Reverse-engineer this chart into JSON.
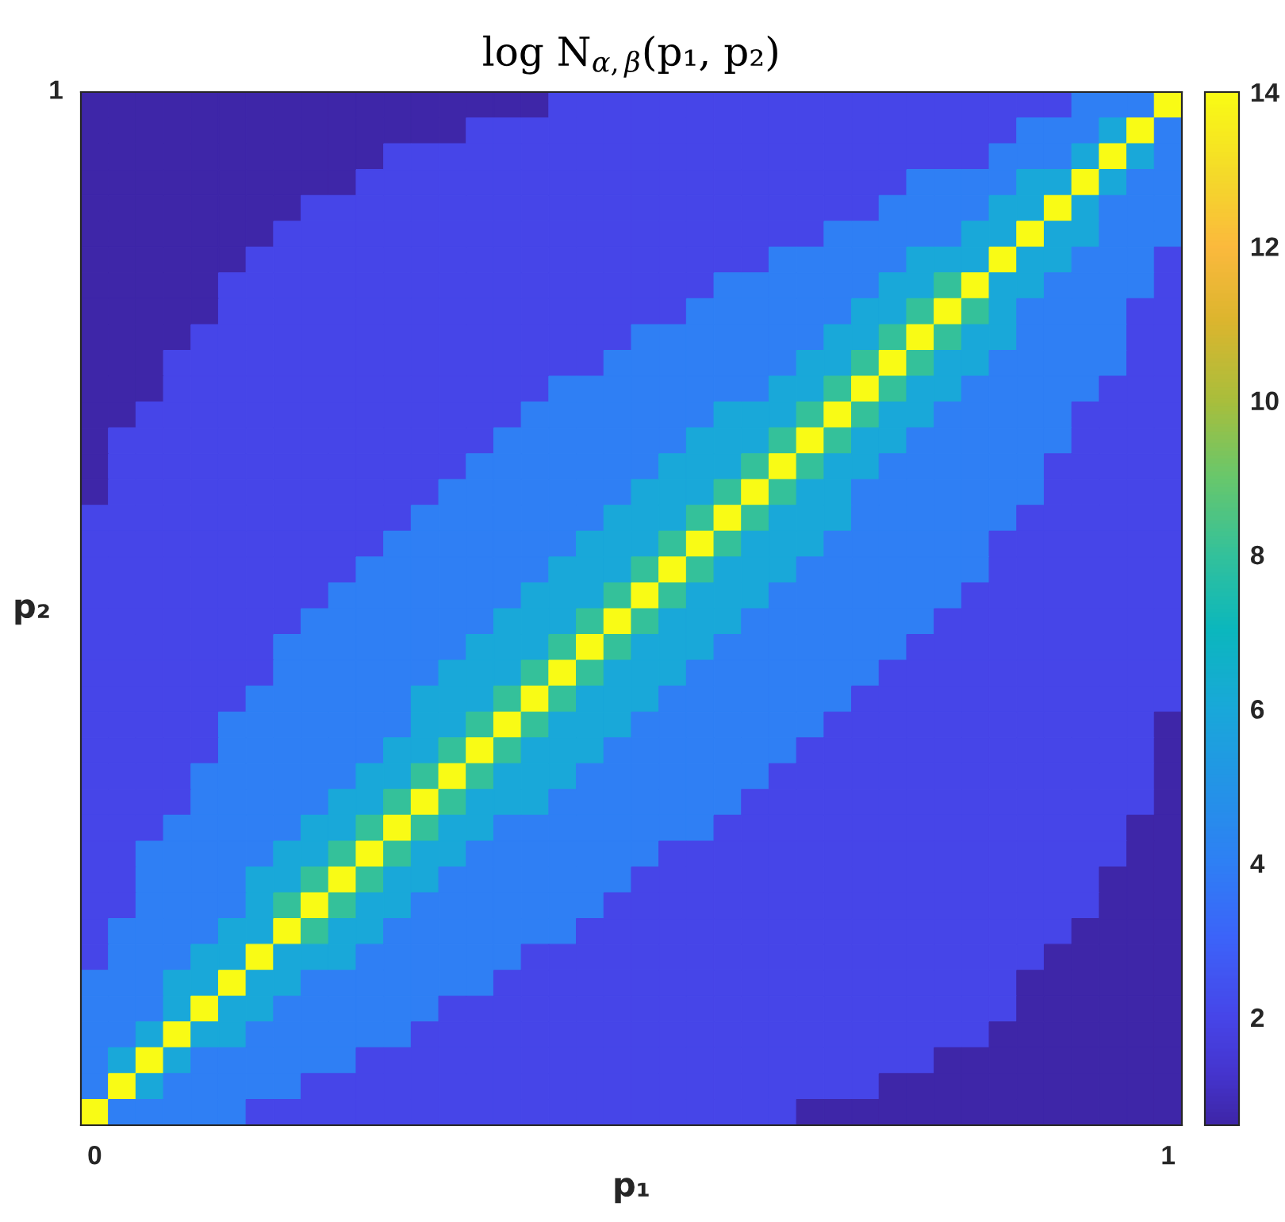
{
  "chart_data": {
    "type": "heatmap",
    "title": "log N$_{α,β}$(p₁, p₂)",
    "xlabel": "p₁",
    "ylabel": "p₂",
    "categories": [
      "0",
      null,
      null,
      null,
      null,
      null,
      null,
      null,
      null,
      null,
      null,
      null,
      null,
      null,
      null,
      null,
      null,
      null,
      null,
      null,
      null,
      null,
      null,
      null,
      null,
      null,
      null,
      null,
      null,
      null,
      null,
      null,
      null,
      null,
      null,
      null,
      null,
      null,
      null,
      "1"
    ],
    "y_categories": [
      null,
      null,
      null,
      null,
      null,
      null,
      null,
      null,
      null,
      null,
      null,
      null,
      null,
      null,
      null,
      null,
      null,
      null,
      null,
      null,
      null,
      null,
      null,
      null,
      null,
      null,
      null,
      null,
      null,
      null,
      null,
      null,
      null,
      null,
      null,
      null,
      null,
      null,
      null,
      null
    ],
    "annotations": [
      "1"
    ],
    "clim": [
      0.6,
      14
    ],
    "cticks": [
      2,
      4,
      6,
      8,
      10,
      12,
      14
    ],
    "cells": [
      [
        0.6,
        0.6,
        0.6,
        0.6,
        0.6,
        0.6,
        0.6,
        0.6,
        0.6,
        0.6,
        0.6,
        0.6,
        0.6,
        0.6,
        0.6,
        0.6,
        0.6,
        2,
        2,
        2,
        2,
        2,
        2,
        2,
        2,
        2,
        2,
        2,
        2,
        2,
        2,
        2,
        2,
        2,
        2,
        2,
        4,
        4,
        4,
        14
      ],
      [
        0.6,
        0.6,
        0.6,
        0.6,
        0.6,
        0.6,
        0.6,
        0.6,
        0.6,
        0.6,
        0.6,
        0.6,
        0.6,
        0.6,
        2,
        2,
        2,
        2,
        2,
        2,
        2,
        2,
        2,
        2,
        2,
        2,
        2,
        2,
        2,
        2,
        2,
        2,
        2,
        2,
        4,
        4,
        4,
        6,
        14,
        4
      ],
      [
        0.6,
        0.6,
        0.6,
        0.6,
        0.6,
        0.6,
        0.6,
        0.6,
        0.6,
        0.6,
        0.6,
        2,
        2,
        2,
        2,
        2,
        2,
        2,
        2,
        2,
        2,
        2,
        2,
        2,
        2,
        2,
        2,
        2,
        2,
        2,
        2,
        2,
        2,
        4,
        4,
        4,
        6,
        14,
        6,
        4
      ],
      [
        0.6,
        0.6,
        0.6,
        0.6,
        0.6,
        0.6,
        0.6,
        0.6,
        0.6,
        0.6,
        2,
        2,
        2,
        2,
        2,
        2,
        2,
        2,
        2,
        2,
        2,
        2,
        2,
        2,
        2,
        2,
        2,
        2,
        2,
        2,
        4,
        4,
        4,
        4,
        6,
        6,
        14,
        6,
        4,
        4
      ],
      [
        0.6,
        0.6,
        0.6,
        0.6,
        0.6,
        0.6,
        0.6,
        0.6,
        2,
        2,
        2,
        2,
        2,
        2,
        2,
        2,
        2,
        2,
        2,
        2,
        2,
        2,
        2,
        2,
        2,
        2,
        2,
        2,
        2,
        4,
        4,
        4,
        4,
        6,
        6,
        14,
        6,
        4,
        4,
        4
      ],
      [
        0.6,
        0.6,
        0.6,
        0.6,
        0.6,
        0.6,
        0.6,
        2,
        2,
        2,
        2,
        2,
        2,
        2,
        2,
        2,
        2,
        2,
        2,
        2,
        2,
        2,
        2,
        2,
        2,
        2,
        2,
        4,
        4,
        4,
        4,
        4,
        6,
        6,
        14,
        6,
        6,
        4,
        4,
        4
      ],
      [
        0.6,
        0.6,
        0.6,
        0.6,
        0.6,
        0.6,
        2,
        2,
        2,
        2,
        2,
        2,
        2,
        2,
        2,
        2,
        2,
        2,
        2,
        2,
        2,
        2,
        2,
        2,
        2,
        4,
        4,
        4,
        4,
        4,
        6,
        6,
        6,
        14,
        6,
        6,
        4,
        4,
        4,
        2
      ],
      [
        0.6,
        0.6,
        0.6,
        0.6,
        0.6,
        2,
        2,
        2,
        2,
        2,
        2,
        2,
        2,
        2,
        2,
        2,
        2,
        2,
        2,
        2,
        2,
        2,
        2,
        4,
        4,
        4,
        4,
        4,
        4,
        6,
        6,
        8,
        14,
        6,
        6,
        4,
        4,
        4,
        4,
        2
      ],
      [
        0.6,
        0.6,
        0.6,
        0.6,
        0.6,
        2,
        2,
        2,
        2,
        2,
        2,
        2,
        2,
        2,
        2,
        2,
        2,
        2,
        2,
        2,
        2,
        2,
        4,
        4,
        4,
        4,
        4,
        4,
        6,
        6,
        8,
        14,
        8,
        6,
        4,
        4,
        4,
        4,
        2,
        2
      ],
      [
        0.6,
        0.6,
        0.6,
        0.6,
        2,
        2,
        2,
        2,
        2,
        2,
        2,
        2,
        2,
        2,
        2,
        2,
        2,
        2,
        2,
        2,
        4,
        4,
        4,
        4,
        4,
        4,
        4,
        6,
        6,
        8,
        14,
        8,
        6,
        6,
        4,
        4,
        4,
        4,
        2,
        2
      ],
      [
        0.6,
        0.6,
        0.6,
        2,
        2,
        2,
        2,
        2,
        2,
        2,
        2,
        2,
        2,
        2,
        2,
        2,
        2,
        2,
        2,
        4,
        4,
        4,
        4,
        4,
        4,
        4,
        6,
        6,
        8,
        14,
        8,
        6,
        6,
        4,
        4,
        4,
        4,
        4,
        2,
        2
      ],
      [
        0.6,
        0.6,
        0.6,
        2,
        2,
        2,
        2,
        2,
        2,
        2,
        2,
        2,
        2,
        2,
        2,
        2,
        2,
        4,
        4,
        4,
        4,
        4,
        4,
        4,
        4,
        6,
        6,
        8,
        14,
        8,
        6,
        6,
        4,
        4,
        4,
        4,
        4,
        2,
        2,
        2
      ],
      [
        0.6,
        0.6,
        2,
        2,
        2,
        2,
        2,
        2,
        2,
        2,
        2,
        2,
        2,
        2,
        2,
        2,
        4,
        4,
        4,
        4,
        4,
        4,
        4,
        6,
        6,
        6,
        8,
        14,
        8,
        6,
        6,
        4,
        4,
        4,
        4,
        4,
        2,
        2,
        2,
        2
      ],
      [
        0.6,
        2,
        2,
        2,
        2,
        2,
        2,
        2,
        2,
        2,
        2,
        2,
        2,
        2,
        2,
        4,
        4,
        4,
        4,
        4,
        4,
        4,
        6,
        6,
        6,
        8,
        14,
        8,
        6,
        6,
        4,
        4,
        4,
        4,
        4,
        4,
        2,
        2,
        2,
        2
      ],
      [
        0.6,
        2,
        2,
        2,
        2,
        2,
        2,
        2,
        2,
        2,
        2,
        2,
        2,
        2,
        4,
        4,
        4,
        4,
        4,
        4,
        4,
        6,
        6,
        6,
        8,
        14,
        8,
        6,
        6,
        4,
        4,
        4,
        4,
        4,
        4,
        2,
        2,
        2,
        2,
        2
      ],
      [
        0.6,
        2,
        2,
        2,
        2,
        2,
        2,
        2,
        2,
        2,
        2,
        2,
        2,
        4,
        4,
        4,
        4,
        4,
        4,
        4,
        6,
        6,
        6,
        8,
        14,
        8,
        6,
        6,
        4,
        4,
        4,
        4,
        4,
        4,
        4,
        2,
        2,
        2,
        2,
        2
      ],
      [
        2,
        2,
        2,
        2,
        2,
        2,
        2,
        2,
        2,
        2,
        2,
        2,
        4,
        4,
        4,
        4,
        4,
        4,
        4,
        6,
        6,
        6,
        8,
        14,
        8,
        6,
        6,
        6,
        4,
        4,
        4,
        4,
        4,
        4,
        2,
        2,
        2,
        2,
        2,
        2
      ],
      [
        2,
        2,
        2,
        2,
        2,
        2,
        2,
        2,
        2,
        2,
        2,
        4,
        4,
        4,
        4,
        4,
        4,
        4,
        6,
        6,
        6,
        8,
        14,
        8,
        6,
        6,
        6,
        4,
        4,
        4,
        4,
        4,
        4,
        2,
        2,
        2,
        2,
        2,
        2,
        2
      ],
      [
        2,
        2,
        2,
        2,
        2,
        2,
        2,
        2,
        2,
        2,
        4,
        4,
        4,
        4,
        4,
        4,
        4,
        6,
        6,
        6,
        8,
        14,
        8,
        6,
        6,
        6,
        4,
        4,
        4,
        4,
        4,
        4,
        4,
        2,
        2,
        2,
        2,
        2,
        2,
        2
      ],
      [
        2,
        2,
        2,
        2,
        2,
        2,
        2,
        2,
        2,
        4,
        4,
        4,
        4,
        4,
        4,
        4,
        6,
        6,
        6,
        8,
        14,
        8,
        6,
        6,
        6,
        4,
        4,
        4,
        4,
        4,
        4,
        4,
        2,
        2,
        2,
        2,
        2,
        2,
        2,
        2
      ],
      [
        2,
        2,
        2,
        2,
        2,
        2,
        2,
        2,
        4,
        4,
        4,
        4,
        4,
        4,
        4,
        6,
        6,
        6,
        8,
        14,
        8,
        6,
        6,
        6,
        4,
        4,
        4,
        4,
        4,
        4,
        4,
        2,
        2,
        2,
        2,
        2,
        2,
        2,
        2,
        2
      ],
      [
        2,
        2,
        2,
        2,
        2,
        2,
        2,
        4,
        4,
        4,
        4,
        4,
        4,
        4,
        6,
        6,
        6,
        8,
        14,
        8,
        6,
        6,
        6,
        4,
        4,
        4,
        4,
        4,
        4,
        4,
        2,
        2,
        2,
        2,
        2,
        2,
        2,
        2,
        2,
        2
      ],
      [
        2,
        2,
        2,
        2,
        2,
        2,
        2,
        4,
        4,
        4,
        4,
        4,
        4,
        6,
        6,
        6,
        8,
        14,
        8,
        6,
        6,
        6,
        4,
        4,
        4,
        4,
        4,
        4,
        4,
        2,
        2,
        2,
        2,
        2,
        2,
        2,
        2,
        2,
        2,
        2
      ],
      [
        2,
        2,
        2,
        2,
        2,
        2,
        4,
        4,
        4,
        4,
        4,
        4,
        6,
        6,
        6,
        8,
        14,
        8,
        6,
        6,
        6,
        4,
        4,
        4,
        4,
        4,
        4,
        4,
        2,
        2,
        2,
        2,
        2,
        2,
        2,
        2,
        2,
        2,
        2,
        2
      ],
      [
        2,
        2,
        2,
        2,
        2,
        4,
        4,
        4,
        4,
        4,
        4,
        4,
        6,
        6,
        8,
        14,
        8,
        6,
        6,
        6,
        4,
        4,
        4,
        4,
        4,
        4,
        4,
        2,
        2,
        2,
        2,
        2,
        2,
        2,
        2,
        2,
        2,
        2,
        2,
        0.6
      ],
      [
        2,
        2,
        2,
        2,
        2,
        4,
        4,
        4,
        4,
        4,
        4,
        6,
        6,
        8,
        14,
        8,
        6,
        6,
        6,
        4,
        4,
        4,
        4,
        4,
        4,
        4,
        2,
        2,
        2,
        2,
        2,
        2,
        2,
        2,
        2,
        2,
        2,
        2,
        2,
        0.6
      ],
      [
        2,
        2,
        2,
        2,
        4,
        4,
        4,
        4,
        4,
        4,
        6,
        6,
        8,
        14,
        8,
        6,
        6,
        6,
        4,
        4,
        4,
        4,
        4,
        4,
        4,
        2,
        2,
        2,
        2,
        2,
        2,
        2,
        2,
        2,
        2,
        2,
        2,
        2,
        2,
        0.6
      ],
      [
        2,
        2,
        2,
        2,
        4,
        4,
        4,
        4,
        4,
        6,
        6,
        8,
        14,
        8,
        6,
        6,
        6,
        4,
        4,
        4,
        4,
        4,
        4,
        4,
        2,
        2,
        2,
        2,
        2,
        2,
        2,
        2,
        2,
        2,
        2,
        2,
        2,
        2,
        2,
        0.6
      ],
      [
        2,
        2,
        2,
        4,
        4,
        4,
        4,
        4,
        6,
        6,
        8,
        14,
        8,
        6,
        6,
        4,
        4,
        4,
        4,
        4,
        4,
        4,
        4,
        2,
        2,
        2,
        2,
        2,
        2,
        2,
        2,
        2,
        2,
        2,
        2,
        2,
        2,
        2,
        0.6,
        0.6
      ],
      [
        2,
        2,
        4,
        4,
        4,
        4,
        4,
        6,
        6,
        8,
        14,
        8,
        6,
        6,
        4,
        4,
        4,
        4,
        4,
        4,
        4,
        2,
        2,
        2,
        2,
        2,
        2,
        2,
        2,
        2,
        2,
        2,
        2,
        2,
        2,
        2,
        2,
        2,
        0.6,
        0.6
      ],
      [
        2,
        2,
        4,
        4,
        4,
        4,
        6,
        6,
        8,
        14,
        8,
        6,
        6,
        4,
        4,
        4,
        4,
        4,
        4,
        4,
        2,
        2,
        2,
        2,
        2,
        2,
        2,
        2,
        2,
        2,
        2,
        2,
        2,
        2,
        2,
        2,
        2,
        0.6,
        0.6,
        0.6
      ],
      [
        2,
        2,
        4,
        4,
        4,
        4,
        6,
        8,
        14,
        8,
        6,
        6,
        4,
        4,
        4,
        4,
        4,
        4,
        4,
        2,
        2,
        2,
        2,
        2,
        2,
        2,
        2,
        2,
        2,
        2,
        2,
        2,
        2,
        2,
        2,
        2,
        2,
        0.6,
        0.6,
        0.6
      ],
      [
        2,
        4,
        4,
        4,
        4,
        6,
        6,
        14,
        8,
        6,
        6,
        4,
        4,
        4,
        4,
        4,
        4,
        4,
        2,
        2,
        2,
        2,
        2,
        2,
        2,
        2,
        2,
        2,
        2,
        2,
        2,
        2,
        2,
        2,
        2,
        2,
        0.6,
        0.6,
        0.6,
        0.6
      ],
      [
        2,
        4,
        4,
        4,
        6,
        6,
        14,
        6,
        6,
        6,
        4,
        4,
        4,
        4,
        4,
        4,
        2,
        2,
        2,
        2,
        2,
        2,
        2,
        2,
        2,
        2,
        2,
        2,
        2,
        2,
        2,
        2,
        2,
        2,
        2,
        0.6,
        0.6,
        0.6,
        0.6,
        0.6
      ],
      [
        4,
        4,
        4,
        6,
        6,
        14,
        6,
        6,
        4,
        4,
        4,
        4,
        4,
        4,
        4,
        2,
        2,
        2,
        2,
        2,
        2,
        2,
        2,
        2,
        2,
        2,
        2,
        2,
        2,
        2,
        2,
        2,
        2,
        2,
        0.6,
        0.6,
        0.6,
        0.6,
        0.6,
        0.6
      ],
      [
        4,
        4,
        4,
        6,
        14,
        6,
        6,
        4,
        4,
        4,
        4,
        4,
        4,
        2,
        2,
        2,
        2,
        2,
        2,
        2,
        2,
        2,
        2,
        2,
        2,
        2,
        2,
        2,
        2,
        2,
        2,
        2,
        2,
        2,
        0.6,
        0.6,
        0.6,
        0.6,
        0.6,
        0.6
      ],
      [
        4,
        4,
        6,
        14,
        6,
        6,
        4,
        4,
        4,
        4,
        4,
        4,
        2,
        2,
        2,
        2,
        2,
        2,
        2,
        2,
        2,
        2,
        2,
        2,
        2,
        2,
        2,
        2,
        2,
        2,
        2,
        2,
        2,
        0.6,
        0.6,
        0.6,
        0.6,
        0.6,
        0.6,
        0.6
      ],
      [
        4,
        6,
        14,
        6,
        4,
        4,
        4,
        4,
        4,
        4,
        2,
        2,
        2,
        2,
        2,
        2,
        2,
        2,
        2,
        2,
        2,
        2,
        2,
        2,
        2,
        2,
        2,
        2,
        2,
        2,
        2,
        0.6,
        0.6,
        0.6,
        0.6,
        0.6,
        0.6,
        0.6,
        0.6,
        0.6
      ],
      [
        4,
        14,
        6,
        4,
        4,
        4,
        4,
        4,
        2,
        2,
        2,
        2,
        2,
        2,
        2,
        2,
        2,
        2,
        2,
        2,
        2,
        2,
        2,
        2,
        2,
        2,
        2,
        2,
        2,
        0.6,
        0.6,
        0.6,
        0.6,
        0.6,
        0.6,
        0.6,
        0.6,
        0.6,
        0.6,
        0.6
      ],
      [
        14,
        4,
        4,
        4,
        4,
        4,
        2,
        2,
        2,
        2,
        2,
        2,
        2,
        2,
        2,
        2,
        2,
        2,
        2,
        2,
        2,
        2,
        2,
        2,
        2,
        2,
        0.6,
        0.6,
        0.6,
        0.6,
        0.6,
        0.6,
        0.6,
        0.6,
        0.6,
        0.6,
        0.6,
        0.6,
        0.6,
        0.6
      ]
    ]
  }
}
